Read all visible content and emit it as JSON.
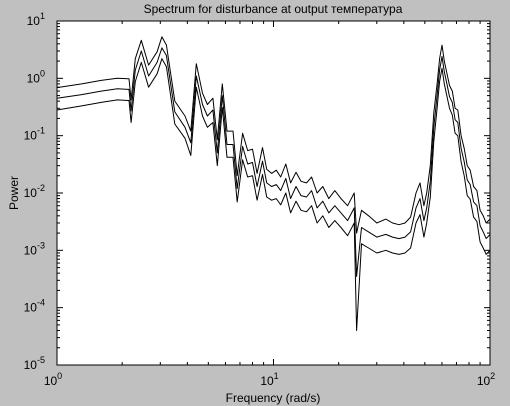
{
  "window": {
    "background": "#c0c0c0"
  },
  "chart_data": {
    "type": "line",
    "title": "Spectrum for disturbance at output температура",
    "xlabel": "Frequency (rad/s)",
    "ylabel": "Power",
    "xscale": "log",
    "yscale": "log",
    "xlim": [
      1,
      100
    ],
    "ylim": [
      1e-05,
      10
    ],
    "grid": false,
    "legend": "none",
    "x_ticks": [
      {
        "value": 1,
        "base": "10",
        "exp": "0"
      },
      {
        "value": 10,
        "base": "10",
        "exp": "1"
      },
      {
        "value": 100,
        "base": "10",
        "exp": "2"
      }
    ],
    "y_ticks": [
      {
        "value": 1e-05,
        "base": "10",
        "exp": "-5"
      },
      {
        "value": 0.0001,
        "base": "10",
        "exp": "-4"
      },
      {
        "value": 0.001,
        "base": "10",
        "exp": "-3"
      },
      {
        "value": 0.01,
        "base": "10",
        "exp": "-2"
      },
      {
        "value": 0.1,
        "base": "10",
        "exp": "-1"
      },
      {
        "value": 1,
        "base": "10",
        "exp": "0"
      },
      {
        "value": 10,
        "base": "10",
        "exp": "1"
      }
    ],
    "colors": {
      "plot_background": "#ffffff",
      "line": "#000000"
    },
    "x": [
      1.0,
      1.3,
      1.6,
      1.9,
      2.15,
      2.2,
      2.3,
      2.45,
      2.65,
      2.9,
      3.05,
      3.2,
      3.5,
      3.9,
      4.15,
      4.4,
      4.7,
      4.95,
      5.25,
      5.5,
      5.8,
      6.1,
      6.5,
      6.8,
      7.2,
      7.6,
      8.0,
      8.4,
      8.9,
      9.3,
      9.8,
      10.3,
      10.8,
      11.4,
      12.0,
      12.7,
      13.4,
      14.2,
      15.0,
      15.9,
      16.9,
      18.0,
      19.2,
      20.5,
      22.0,
      23.6,
      24.2,
      25.5,
      27.5,
      30.0,
      33.0,
      35.5,
      38.0,
      40.5,
      43.0,
      45.5,
      47.5,
      49.5,
      51.0,
      53.0,
      55.0,
      57.0,
      58.5,
      60.0,
      61.5,
      63.0,
      65.0,
      67.0,
      69.0,
      71.0,
      73.5,
      76.0,
      78.5,
      81.0,
      84.0,
      87.0,
      90.0,
      93.0,
      96.0,
      100.0
    ],
    "series": [
      {
        "values": [
          0.69,
          0.8,
          0.92,
          1.0,
          0.98,
          0.42,
          2.2,
          4.6,
          1.7,
          2.9,
          5.3,
          3.8,
          0.4,
          0.22,
          0.12,
          1.8,
          0.55,
          0.35,
          0.45,
          0.085,
          0.8,
          0.12,
          0.12,
          0.02,
          0.11,
          0.055,
          0.058,
          0.022,
          0.062,
          0.026,
          0.022,
          0.025,
          0.019,
          0.032,
          0.015,
          0.023,
          0.016,
          0.015,
          0.019,
          0.01,
          0.013,
          0.008,
          0.011,
          0.008,
          0.006,
          0.01,
          0.002,
          0.005,
          0.004,
          0.003,
          0.0035,
          0.003,
          0.0028,
          0.003,
          0.0038,
          0.01,
          0.015,
          0.006,
          0.01,
          0.03,
          0.25,
          0.8,
          2.2,
          3.8,
          2.0,
          1.3,
          0.75,
          0.6,
          0.3,
          0.28,
          0.1,
          0.06,
          0.03,
          0.025,
          0.013,
          0.011,
          0.005,
          0.004,
          0.003,
          0.0035
        ]
      },
      {
        "values": [
          0.45,
          0.52,
          0.6,
          0.66,
          0.64,
          0.27,
          1.4,
          3.0,
          1.1,
          1.9,
          3.4,
          2.5,
          0.26,
          0.14,
          0.075,
          1.1,
          0.35,
          0.22,
          0.28,
          0.05,
          0.5,
          0.07,
          0.07,
          0.012,
          0.065,
          0.032,
          0.034,
          0.013,
          0.036,
          0.015,
          0.013,
          0.014,
          0.011,
          0.018,
          0.008,
          0.013,
          0.009,
          0.0085,
          0.011,
          0.0055,
          0.0072,
          0.0045,
          0.006,
          0.0045,
          0.0033,
          0.0055,
          0.00035,
          0.0025,
          0.0021,
          0.0017,
          0.0019,
          0.0017,
          0.0016,
          0.0017,
          0.0021,
          0.0055,
          0.008,
          0.0033,
          0.0055,
          0.016,
          0.14,
          0.5,
          1.4,
          2.4,
          1.3,
          0.85,
          0.48,
          0.38,
          0.19,
          0.17,
          0.06,
          0.035,
          0.017,
          0.014,
          0.007,
          0.006,
          0.0027,
          0.0021,
          0.0016,
          0.0019
        ]
      },
      {
        "values": [
          0.28,
          0.33,
          0.38,
          0.42,
          0.41,
          0.17,
          0.88,
          1.9,
          0.7,
          1.2,
          2.2,
          1.6,
          0.16,
          0.09,
          0.045,
          0.7,
          0.22,
          0.14,
          0.17,
          0.03,
          0.31,
          0.042,
          0.042,
          0.007,
          0.038,
          0.019,
          0.02,
          0.0075,
          0.021,
          0.0085,
          0.0075,
          0.008,
          0.0062,
          0.01,
          0.0045,
          0.0072,
          0.005,
          0.0047,
          0.006,
          0.003,
          0.004,
          0.0025,
          0.0033,
          0.0025,
          0.0018,
          0.003,
          4e-05,
          0.0013,
          0.0011,
          0.0009,
          0.001,
          0.0009,
          0.00085,
          0.0009,
          0.0011,
          0.003,
          0.0042,
          0.0017,
          0.003,
          0.0085,
          0.08,
          0.3,
          0.88,
          1.5,
          0.8,
          0.52,
          0.3,
          0.23,
          0.11,
          0.1,
          0.035,
          0.02,
          0.009,
          0.0078,
          0.0038,
          0.0032,
          0.0014,
          0.0011,
          0.00085,
          0.001
        ]
      }
    ]
  }
}
